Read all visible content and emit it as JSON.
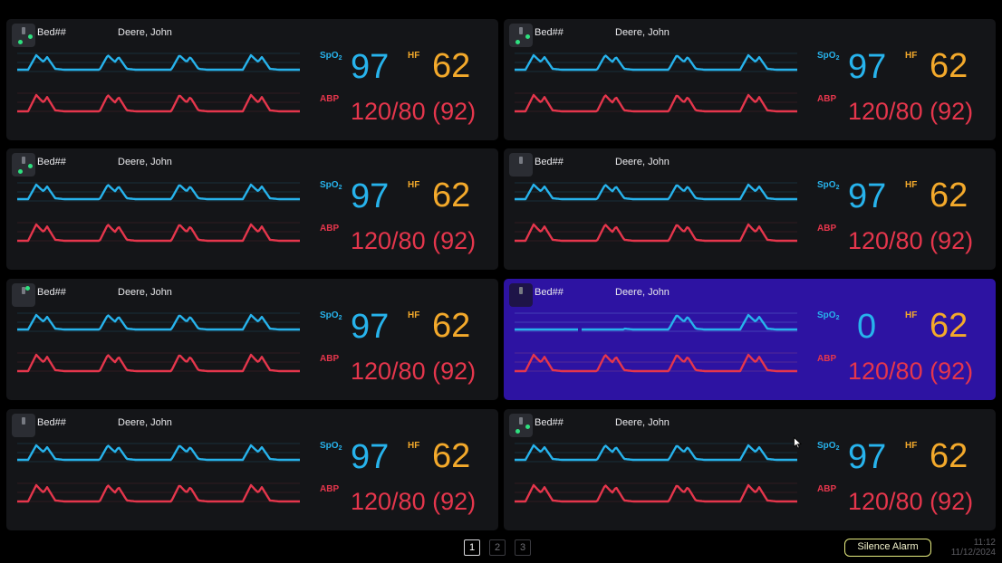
{
  "monitors": [
    {
      "bed": "Bed##",
      "patient": "Deere, John",
      "spo2_label": "SpO",
      "spo2_sub": "2",
      "spo2": "97",
      "hf_label": "HF",
      "hf": "62",
      "abp_label": "ABP",
      "abp": "120/80 (92)",
      "alarm": false,
      "status": "three-dots"
    },
    {
      "bed": "Bed##",
      "patient": "Deere, John",
      "spo2_label": "SpO",
      "spo2_sub": "2",
      "spo2": "97",
      "hf_label": "HF",
      "hf": "62",
      "abp_label": "ABP",
      "abp": "120/80 (92)",
      "alarm": false,
      "status": "three-dots"
    },
    {
      "bed": "Bed##",
      "patient": "Deere, John",
      "spo2_label": "SpO",
      "spo2_sub": "2",
      "spo2": "97",
      "hf_label": "HF",
      "hf": "62",
      "abp_label": "ABP",
      "abp": "120/80 (92)",
      "alarm": false,
      "status": "three-dots"
    },
    {
      "bed": "Bed##",
      "patient": "Deere, John",
      "spo2_label": "SpO",
      "spo2_sub": "2",
      "spo2": "97",
      "hf_label": "HF",
      "hf": "62",
      "abp_label": "ABP",
      "abp": "120/80 (92)",
      "alarm": false,
      "status": "none"
    },
    {
      "bed": "Bed##",
      "patient": "Deere, John",
      "spo2_label": "SpO",
      "spo2_sub": "2",
      "spo2": "97",
      "hf_label": "HF",
      "hf": "62",
      "abp_label": "ABP",
      "abp": "120/80 (92)",
      "alarm": false,
      "status": "one-dot"
    },
    {
      "bed": "Bed##",
      "patient": "Deere, John",
      "spo2_label": "SpO",
      "spo2_sub": "2",
      "spo2": "0",
      "hf_label": "HF",
      "hf": "62",
      "abp_label": "ABP",
      "abp": "120/80 (92)",
      "alarm": true,
      "status": "none"
    },
    {
      "bed": "Bed##",
      "patient": "Deere, John",
      "spo2_label": "SpO",
      "spo2_sub": "2",
      "spo2": "97",
      "hf_label": "HF",
      "hf": "62",
      "abp_label": "ABP",
      "abp": "120/80 (92)",
      "alarm": false,
      "status": "none"
    },
    {
      "bed": "Bed##",
      "patient": "Deere, John",
      "spo2_label": "SpO",
      "spo2_sub": "2",
      "spo2": "97",
      "hf_label": "HF",
      "hf": "62",
      "abp_label": "ABP",
      "abp": "120/80 (92)",
      "alarm": false,
      "status": "two-dots"
    }
  ],
  "pagination": {
    "pages": [
      "1",
      "2",
      "3"
    ],
    "current": "1"
  },
  "silence_alarm_label": "Silence Alarm",
  "clock": {
    "time": "11:12",
    "date": "11/12/2024"
  },
  "colors": {
    "spo2": "#27b3ec",
    "hf": "#f3a92b",
    "abp": "#e5364c",
    "alarm_tile": "#2d13a2",
    "status_dot": "#2ee07f"
  },
  "icons": {
    "status": "bed-status-icon",
    "cursor": "mouse-cursor-icon"
  }
}
